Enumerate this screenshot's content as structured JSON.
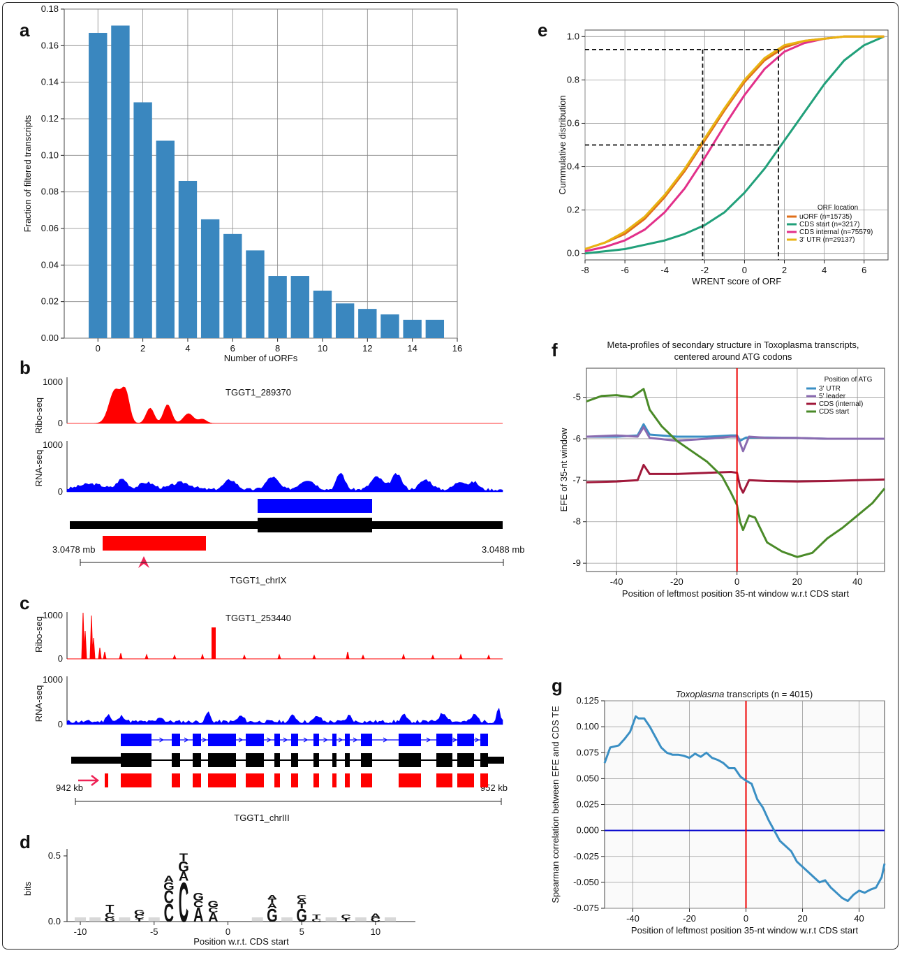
{
  "panel_labels": [
    "a",
    "b",
    "c",
    "d",
    "e",
    "f",
    "g"
  ],
  "colors": {
    "bar": "#3a87bf",
    "ribo": "#ff0000",
    "rna": "#0000ff",
    "gene": "#000000",
    "uorf": "#e06f1a",
    "cds_start": "#21a07a",
    "cds_internal": "#e2308a",
    "utr3": "#e8b312",
    "f_utr3": "#3a8fc4",
    "f_leader": "#8a6bb0",
    "f_internal": "#a0183a",
    "f_start": "#4a8a28",
    "g_line": "#3a8fc4",
    "g_zero": "#0000cc",
    "g_vline": "#ee0000"
  },
  "panel_b": {
    "gene": "TGGT1_289370",
    "chrom": "TGGT1_chrIX",
    "start_label": "3.0478 mb",
    "end_label": "3.0488 mb",
    "ribo_label": "Ribo-seq",
    "rna_label": "RNA-seq",
    "ribo_max": "1000",
    "rna_max": "1000",
    "zero": "0"
  },
  "panel_c": {
    "gene": "TGGT1_253440",
    "chrom": "TGGT1_chrIII",
    "start_label": "942 kb",
    "end_label": "952 kb",
    "ribo_label": "Ribo-seq",
    "rna_label": "RNA-seq",
    "ribo_max": "1000",
    "rna_max": "1000",
    "zero": "0"
  },
  "chart_data": [
    {
      "panel": "a",
      "type": "bar",
      "x": [
        0,
        1,
        2,
        3,
        4,
        5,
        6,
        7,
        8,
        9,
        10,
        11,
        12,
        13,
        14,
        15
      ],
      "values": [
        0.167,
        0.171,
        0.129,
        0.108,
        0.086,
        0.065,
        0.057,
        0.048,
        0.034,
        0.034,
        0.026,
        0.019,
        0.016,
        0.013,
        0.01,
        0.01
      ],
      "xlabel": "Number of uORFs",
      "ylabel": "Fraction of filtered transcripts",
      "xlim": [
        -1.5,
        16
      ],
      "ylim": [
        0,
        0.18
      ],
      "xticks": [
        0,
        2,
        4,
        6,
        8,
        10,
        12,
        14,
        16
      ],
      "yticks": [
        "0.00",
        "0.02",
        "0.04",
        "0.06",
        "0.08",
        "0.10",
        "0.12",
        "0.14",
        "0.16",
        "0.18"
      ],
      "grid": true
    },
    {
      "panel": "d",
      "type": "sequence-logo",
      "xlabel": "Position w.r.t. CDS start",
      "ylabel": "bits",
      "ylim": [
        0,
        0.5
      ],
      "xticks": [
        -10,
        -5,
        0,
        5,
        10
      ],
      "yticks": [
        "0.0",
        "0.5"
      ],
      "stacks": [
        {
          "pos": -8,
          "letters": [
            "T",
            "C",
            "G"
          ]
        },
        {
          "pos": -6,
          "letters": [
            "G",
            "C",
            "T"
          ]
        },
        {
          "pos": -4,
          "letters": [
            "A",
            "G",
            "C",
            "C"
          ]
        },
        {
          "pos": -3,
          "letters": [
            "T",
            "G",
            "A",
            "C"
          ]
        },
        {
          "pos": -2,
          "letters": [
            "G",
            "C",
            "A"
          ]
        },
        {
          "pos": -1,
          "letters": [
            "G",
            "C",
            "A"
          ]
        },
        {
          "pos": 3,
          "letters": [
            "A",
            "T",
            "A",
            "G"
          ]
        },
        {
          "pos": 5,
          "letters": [
            "C",
            "A",
            "T",
            "G"
          ]
        },
        {
          "pos": 6,
          "letters": [
            "T",
            "C"
          ]
        },
        {
          "pos": 8,
          "letters": [
            "C",
            "T"
          ]
        },
        {
          "pos": 10,
          "letters": [
            "A",
            "C"
          ]
        }
      ]
    },
    {
      "panel": "e",
      "type": "line",
      "xlabel": "WRENT score of ORF",
      "ylabel": "Cummulative distribution",
      "xlim": [
        -8,
        7.2
      ],
      "ylim": [
        -0.03,
        1.03
      ],
      "xticks": [
        -8,
        -6,
        -4,
        -2,
        0,
        2,
        4,
        6
      ],
      "yticks": [
        "0.0",
        "0.2",
        "0.4",
        "0.6",
        "0.8",
        "1.0"
      ],
      "legend": {
        "title": "ORF location",
        "position": "bottom-right"
      },
      "guides": [
        {
          "x": -2.1,
          "y": 0.5
        },
        {
          "x": 1.7,
          "y": 0.5
        },
        {
          "x": -2.1,
          "y": 0.94
        },
        {
          "x": 1.7,
          "y": 0.94
        }
      ],
      "series": [
        {
          "name": "uORF (n=15735)",
          "x": [
            -8,
            -7,
            -6,
            -5,
            -4,
            -3,
            -2,
            -1,
            0,
            1,
            2,
            3,
            4,
            5,
            6,
            7
          ],
          "values": [
            0.02,
            0.05,
            0.09,
            0.16,
            0.26,
            0.38,
            0.52,
            0.66,
            0.79,
            0.89,
            0.95,
            0.98,
            0.99,
            1.0,
            1.0,
            1.0
          ]
        },
        {
          "name": "CDS start (n=3217)",
          "x": [
            -8,
            -7,
            -6,
            -5,
            -4,
            -3,
            -2,
            -1,
            0,
            1,
            2,
            3,
            4,
            5,
            6,
            7
          ],
          "values": [
            0.0,
            0.01,
            0.02,
            0.04,
            0.06,
            0.09,
            0.13,
            0.19,
            0.28,
            0.39,
            0.52,
            0.65,
            0.78,
            0.89,
            0.96,
            1.0
          ]
        },
        {
          "name": "CDS internal (n=75579)",
          "x": [
            -8,
            -7,
            -6,
            -5,
            -4,
            -3,
            -2,
            -1,
            0,
            1,
            2,
            3,
            4,
            5,
            6,
            7
          ],
          "values": [
            0.01,
            0.03,
            0.06,
            0.11,
            0.19,
            0.3,
            0.44,
            0.59,
            0.73,
            0.85,
            0.93,
            0.97,
            0.99,
            1.0,
            1.0,
            1.0
          ]
        },
        {
          "name": "3' UTR (n=29137)",
          "x": [
            -8,
            -7,
            -6,
            -5,
            -4,
            -3,
            -2,
            -1,
            0,
            1,
            2,
            3,
            4,
            5,
            6,
            7
          ],
          "values": [
            0.02,
            0.05,
            0.1,
            0.17,
            0.27,
            0.39,
            0.53,
            0.67,
            0.8,
            0.9,
            0.96,
            0.98,
            0.99,
            1.0,
            1.0,
            1.0
          ]
        }
      ]
    },
    {
      "panel": "f",
      "type": "line",
      "title": "Meta-profiles of secondary structure in Toxoplasma transcripts, centered around ATG codons",
      "title_lines": [
        "Meta-profiles of secondary structure in Toxoplasma transcripts,",
        "centered around ATG codons"
      ],
      "xlabel": "Position of leftmost position 35-nt window w.r.t CDS start",
      "ylabel": "EFE of 35-nt window",
      "xlim": [
        -50,
        49
      ],
      "ylim": [
        -9.2,
        -4.3
      ],
      "xticks": [
        -40,
        -20,
        0,
        20,
        40
      ],
      "yticks": [
        "-5",
        "-6",
        "-7",
        "-8",
        "-9"
      ],
      "legend": {
        "title": "Position of ATG",
        "position": "top-right"
      },
      "series": [
        {
          "name": "3' UTR",
          "x": [
            -50,
            -40,
            -33,
            -31,
            -29,
            -20,
            -10,
            -2,
            0,
            1,
            3,
            10,
            20,
            30,
            40,
            49
          ],
          "values": [
            -5.95,
            -5.95,
            -5.92,
            -5.65,
            -5.9,
            -5.95,
            -5.95,
            -5.92,
            -5.92,
            -6.05,
            -5.97,
            -5.97,
            -5.98,
            -6.0,
            -6.0,
            -6.0
          ]
        },
        {
          "name": "5' leader",
          "x": [
            -50,
            -40,
            -33,
            -31,
            -29,
            -20,
            -10,
            -2,
            0,
            1,
            2,
            4,
            10,
            20,
            30,
            40,
            49
          ],
          "values": [
            -5.95,
            -5.92,
            -5.95,
            -5.72,
            -5.98,
            -6.05,
            -6.0,
            -5.95,
            -5.95,
            -6.1,
            -6.3,
            -5.95,
            -5.98,
            -5.98,
            -6.0,
            -6.0,
            -6.0
          ]
        },
        {
          "name": "CDS (internal)",
          "x": [
            -50,
            -40,
            -33,
            -31,
            -29,
            -20,
            -10,
            -2,
            0,
            1,
            2,
            4,
            10,
            20,
            30,
            40,
            49
          ],
          "values": [
            -7.05,
            -7.03,
            -7.0,
            -6.63,
            -6.85,
            -6.85,
            -6.82,
            -6.8,
            -6.82,
            -7.15,
            -7.3,
            -7.0,
            -7.02,
            -7.03,
            -7.02,
            -7.0,
            -6.98
          ]
        },
        {
          "name": "CDS start",
          "x": [
            -50,
            -45,
            -40,
            -35,
            -33,
            -31,
            -29,
            -25,
            -20,
            -15,
            -10,
            -5,
            -2,
            0,
            1,
            2,
            4,
            6,
            10,
            15,
            20,
            25,
            30,
            35,
            40,
            45,
            49
          ],
          "values": [
            -5.1,
            -4.97,
            -4.95,
            -5.0,
            -4.9,
            -4.8,
            -5.3,
            -5.7,
            -6.05,
            -6.3,
            -6.55,
            -6.9,
            -7.3,
            -7.6,
            -8.0,
            -8.2,
            -7.85,
            -7.9,
            -8.5,
            -8.72,
            -8.85,
            -8.75,
            -8.4,
            -8.15,
            -7.85,
            -7.55,
            -7.2
          ]
        }
      ]
    },
    {
      "panel": "g",
      "type": "line",
      "title": "Toxoplasma transcripts (n = 4015)",
      "title_italic": "Toxoplasma",
      "title_rest": " transcripts (n = 4015)",
      "xlabel": "Position of leftmost position 35-nt window w.r.t CDS start",
      "ylabel": "Spearman correlation between EFE and CDS TE",
      "xlim": [
        -50,
        49
      ],
      "ylim": [
        -0.075,
        0.125
      ],
      "xticks": [
        -40,
        -20,
        0,
        20,
        40
      ],
      "yticks": [
        "0.125",
        "0.100",
        "0.075",
        "0.050",
        "0.025",
        "0.000",
        "-0.025",
        "-0.050",
        "-0.075"
      ],
      "series": [
        {
          "name": "",
          "x": [
            -50,
            -48,
            -45,
            -43,
            -41,
            -39,
            -38,
            -36,
            -34,
            -32,
            -30,
            -28,
            -26,
            -24,
            -22,
            -20,
            -18,
            -16,
            -14,
            -12,
            -10,
            -8,
            -6,
            -4,
            -2,
            0,
            2,
            4,
            6,
            8,
            10,
            12,
            14,
            16,
            18,
            20,
            22,
            24,
            26,
            28,
            30,
            32,
            34,
            36,
            38,
            40,
            42,
            44,
            46,
            48,
            49
          ],
          "values": [
            0.065,
            0.08,
            0.082,
            0.088,
            0.095,
            0.11,
            0.108,
            0.108,
            0.1,
            0.09,
            0.08,
            0.075,
            0.073,
            0.073,
            0.072,
            0.07,
            0.074,
            0.071,
            0.075,
            0.07,
            0.068,
            0.065,
            0.06,
            0.06,
            0.052,
            0.048,
            0.045,
            0.03,
            0.022,
            0.01,
            0.0,
            -0.01,
            -0.015,
            -0.02,
            -0.03,
            -0.035,
            -0.04,
            -0.045,
            -0.05,
            -0.048,
            -0.055,
            -0.06,
            -0.065,
            -0.068,
            -0.062,
            -0.058,
            -0.06,
            -0.057,
            -0.055,
            -0.045,
            -0.032
          ]
        }
      ]
    }
  ]
}
